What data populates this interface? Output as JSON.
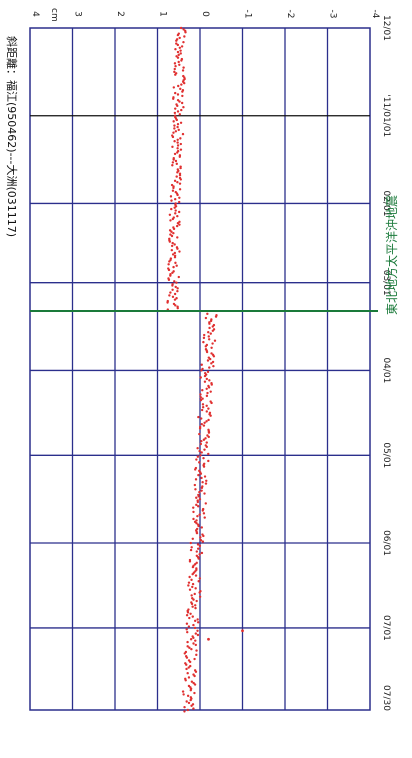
{
  "chart_data": {
    "type": "scatter",
    "title": "斜距離：福江(950462)---大洲(031117)",
    "y_unit": "cm",
    "ylim": [
      -4,
      4
    ],
    "y_ticks": [
      "4",
      "3",
      "2",
      "1",
      "0",
      "-1",
      "-2",
      "-3",
      "-4"
    ],
    "xlim": [
      "2010-12-01",
      "2011-07-30"
    ],
    "x_tick_labels": [
      {
        "date": "2010-12-01",
        "label": "12/01"
      },
      {
        "date": "2011-01-01",
        "label": "'11/01/01"
      },
      {
        "date": "2011-02-01",
        "label": "02/01"
      },
      {
        "date": "2011-03-01",
        "label": "03/01"
      },
      {
        "date": "2011-04-01",
        "label": "04/01"
      },
      {
        "date": "2011-05-01",
        "label": "05/01"
      },
      {
        "date": "2011-06-01",
        "label": "06/01"
      },
      {
        "date": "2011-07-01",
        "label": "07/01"
      },
      {
        "date": "2011-07-30",
        "label": "07/30"
      }
    ],
    "event": {
      "date": "2011-03-11",
      "label": "東北地方太平洋沖地震"
    },
    "series": [
      {
        "color": "#e03030",
        "segments": [
          {
            "from": "2010-12-01",
            "to": "2011-03-10",
            "y_start": 0.45,
            "y_end": 0.65,
            "spread": 0.13
          },
          {
            "from": "2011-03-12",
            "to": "2011-07-30",
            "y_start": -0.25,
            "y_end": 0.3,
            "spread": 0.15
          }
        ],
        "outliers": [
          {
            "date": "2011-07-02",
            "y": -1.0
          },
          {
            "date": "2011-07-05",
            "y": -0.2
          }
        ]
      }
    ],
    "grid": true,
    "colors": {
      "grid": "#2b2f8c",
      "points": "#e03030",
      "event_line": "#1a7a3a",
      "year_line": "#111111"
    }
  }
}
